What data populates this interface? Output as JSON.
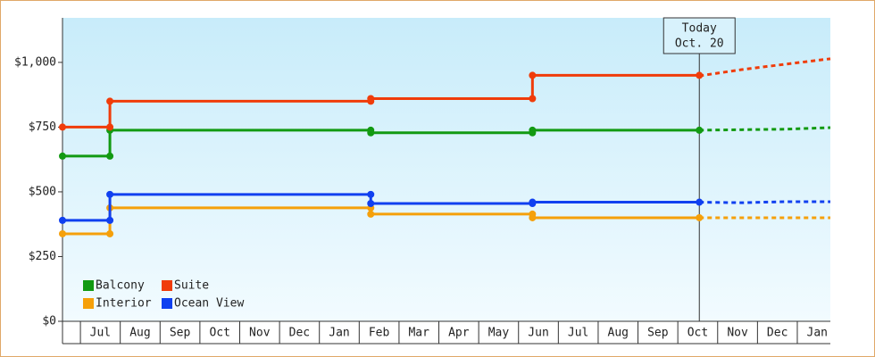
{
  "chart_data": {
    "type": "line",
    "xlim": [
      -0.45,
      18.83
    ],
    "ylim": [
      0,
      1172
    ],
    "xticks": [
      {
        "value": 0.5,
        "label": "Jul"
      },
      {
        "value": 1.5,
        "label": "Aug"
      },
      {
        "value": 2.5,
        "label": "Sep"
      },
      {
        "value": 3.5,
        "label": "Oct"
      },
      {
        "value": 4.5,
        "label": "Nov"
      },
      {
        "value": 5.5,
        "label": "Dec"
      },
      {
        "value": 6.5,
        "label": "Jan"
      },
      {
        "value": 7.5,
        "label": "Feb"
      },
      {
        "value": 8.5,
        "label": "Mar"
      },
      {
        "value": 9.5,
        "label": "Apr"
      },
      {
        "value": 10.5,
        "label": "May"
      },
      {
        "value": 11.5,
        "label": "Jun"
      },
      {
        "value": 12.5,
        "label": "Jul"
      },
      {
        "value": 13.5,
        "label": "Aug"
      },
      {
        "value": 14.5,
        "label": "Sep"
      },
      {
        "value": 15.5,
        "label": "Oct"
      },
      {
        "value": 16.5,
        "label": "Nov"
      },
      {
        "value": 17.5,
        "label": "Dec"
      },
      {
        "value": 18.5,
        "label": "Jan"
      }
    ],
    "yticks": [
      {
        "value": 0,
        "label": "$0"
      },
      {
        "value": 250,
        "label": "$250"
      },
      {
        "value": 500,
        "label": "$500"
      },
      {
        "value": 750,
        "label": "$750"
      },
      {
        "value": 1000,
        "label": "$1,000"
      }
    ],
    "annotation": {
      "x": 15.54,
      "lines": [
        "Today",
        "Oct. 20"
      ]
    },
    "series": [
      {
        "name": "Balcony",
        "color": "#129a12",
        "x": [
          -0.45,
          0.74,
          0.74,
          7.29,
          7.29,
          11.35,
          11.35,
          15.54
        ],
        "values": [
          638,
          638,
          738,
          738,
          728,
          728,
          738,
          738
        ],
        "forecast": {
          "x": [
            15.54,
            16.6,
            17.7,
            18.83
          ],
          "values": [
            738,
            740,
            742,
            748
          ]
        }
      },
      {
        "name": "Suite",
        "color": "#f03c0a",
        "x": [
          -0.45,
          0.74,
          0.74,
          7.29,
          7.29,
          11.35,
          11.35,
          15.54
        ],
        "values": [
          750,
          750,
          850,
          850,
          860,
          860,
          950,
          950
        ],
        "forecast": {
          "x": [
            15.54,
            16.6,
            17.7,
            18.83
          ],
          "values": [
            948,
            972,
            993,
            1014
          ]
        }
      },
      {
        "name": "Interior",
        "color": "#f5a00a",
        "x": [
          -0.45,
          0.74,
          0.74,
          7.29,
          7.29,
          11.35,
          11.35,
          15.54
        ],
        "values": [
          338,
          338,
          438,
          438,
          414,
          414,
          400,
          400
        ],
        "forecast": {
          "x": [
            15.54,
            16.6,
            17.7,
            18.83
          ],
          "values": [
            400,
            400,
            400,
            400
          ]
        }
      },
      {
        "name": "Ocean View",
        "color": "#1040f0",
        "x": [
          -0.45,
          0.74,
          0.74,
          7.29,
          7.29,
          11.35,
          11.35,
          15.54
        ],
        "values": [
          390,
          390,
          490,
          490,
          455,
          455,
          460,
          460
        ],
        "forecast": {
          "x": [
            15.54,
            16.6,
            17.7,
            18.83
          ],
          "values": [
            460,
            458,
            462,
            462
          ]
        }
      }
    ]
  }
}
